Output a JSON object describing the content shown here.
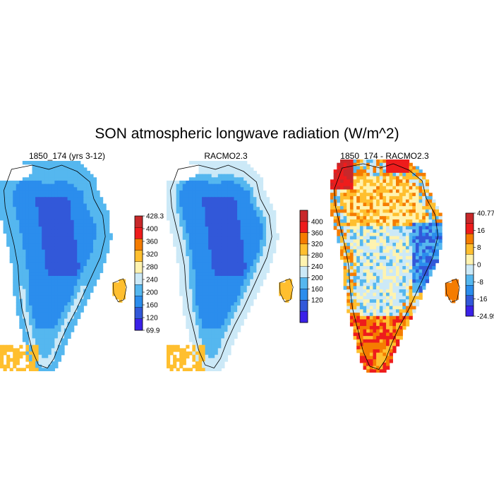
{
  "title": "SON atmospheric longwave radiation (W/m^2)",
  "chart_data": [
    {
      "type": "heatmap",
      "title": "1850_174 (yrs 3-12)",
      "colorbar": {
        "labels": [
          "428.3",
          "400",
          "360",
          "320",
          "280",
          "240",
          "200",
          "160",
          "120",
          "69.9"
        ],
        "colors": [
          "#c8282a",
          "#ee1c1c",
          "#f57c00",
          "#ffbf2f",
          "#fff3b0",
          "#cce9f7",
          "#55b7ef",
          "#2b8ded",
          "#3258d9",
          "#3a21e8"
        ]
      }
    },
    {
      "type": "heatmap",
      "title": "RACMO2.3",
      "colorbar": {
        "labels": [
          "400",
          "360",
          "320",
          "280",
          "240",
          "200",
          "160",
          "120"
        ],
        "colors": [
          "#c8282a",
          "#ee1c1c",
          "#f57c00",
          "#ffbf2f",
          "#fff3b0",
          "#cce9f7",
          "#55b7ef",
          "#2b8ded",
          "#3258d9",
          "#3a21e8"
        ]
      }
    },
    {
      "type": "heatmap",
      "title": "1850_174 - RACMO2.3",
      "colorbar": {
        "labels": [
          "40.77",
          "16",
          "8",
          "0",
          "-8",
          "-16",
          "-24.95"
        ],
        "colors": [
          "#c8282a",
          "#ee1c1c",
          "#f57c00",
          "#ffbf2f",
          "#fff3b0",
          "#cce9f7",
          "#55b7ef",
          "#2b8ded",
          "#3258d9",
          "#3a21e8"
        ]
      }
    }
  ]
}
